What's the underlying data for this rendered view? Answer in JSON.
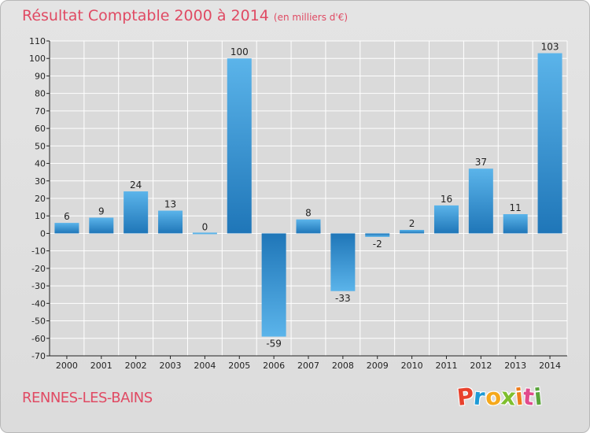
{
  "header": {
    "title": "Résultat Comptable 2000 à 2014",
    "subtitle": "(en milliers d'€)"
  },
  "footer": {
    "commune": "RENNES-LES-BAINS",
    "logo_letters": [
      "P",
      "r",
      "o",
      "x",
      "i",
      "t",
      "i"
    ],
    "logo_colors": [
      "#e8412c",
      "#1e9ad6",
      "#f5a81c",
      "#7fbf2e",
      "#ef7d1b",
      "#e14b8c",
      "#5aa53b"
    ]
  },
  "colors": {
    "text": "#e04a63",
    "bar_light": "#5bb4ea",
    "bar_dark": "#1f76b8",
    "grid": "#ffffff",
    "axis": "#222222"
  },
  "chart_data": {
    "type": "bar",
    "title": "Résultat Comptable 2000 à 2014",
    "subtitle": "(en milliers d'€)",
    "categories": [
      "2000",
      "2001",
      "2002",
      "2003",
      "2004",
      "2005",
      "2006",
      "2007",
      "2008",
      "2009",
      "2010",
      "2011",
      "2012",
      "2013",
      "2014"
    ],
    "values": [
      6,
      9,
      24,
      13,
      0,
      100,
      -59,
      8,
      -33,
      -2,
      2,
      16,
      37,
      11,
      103
    ],
    "data_labels": [
      "6",
      "9",
      "24",
      "13",
      "0",
      "100",
      "-59",
      "8",
      "-33",
      "-2",
      "2",
      "16",
      "37",
      "11",
      "103"
    ],
    "y_ticks": [
      110,
      100,
      90,
      80,
      70,
      60,
      50,
      40,
      30,
      20,
      10,
      0,
      -10,
      -20,
      -30,
      -40,
      -50,
      -60,
      -70
    ],
    "ylim": [
      -70,
      110
    ],
    "xlabel": "",
    "ylabel": "",
    "grid": true
  }
}
